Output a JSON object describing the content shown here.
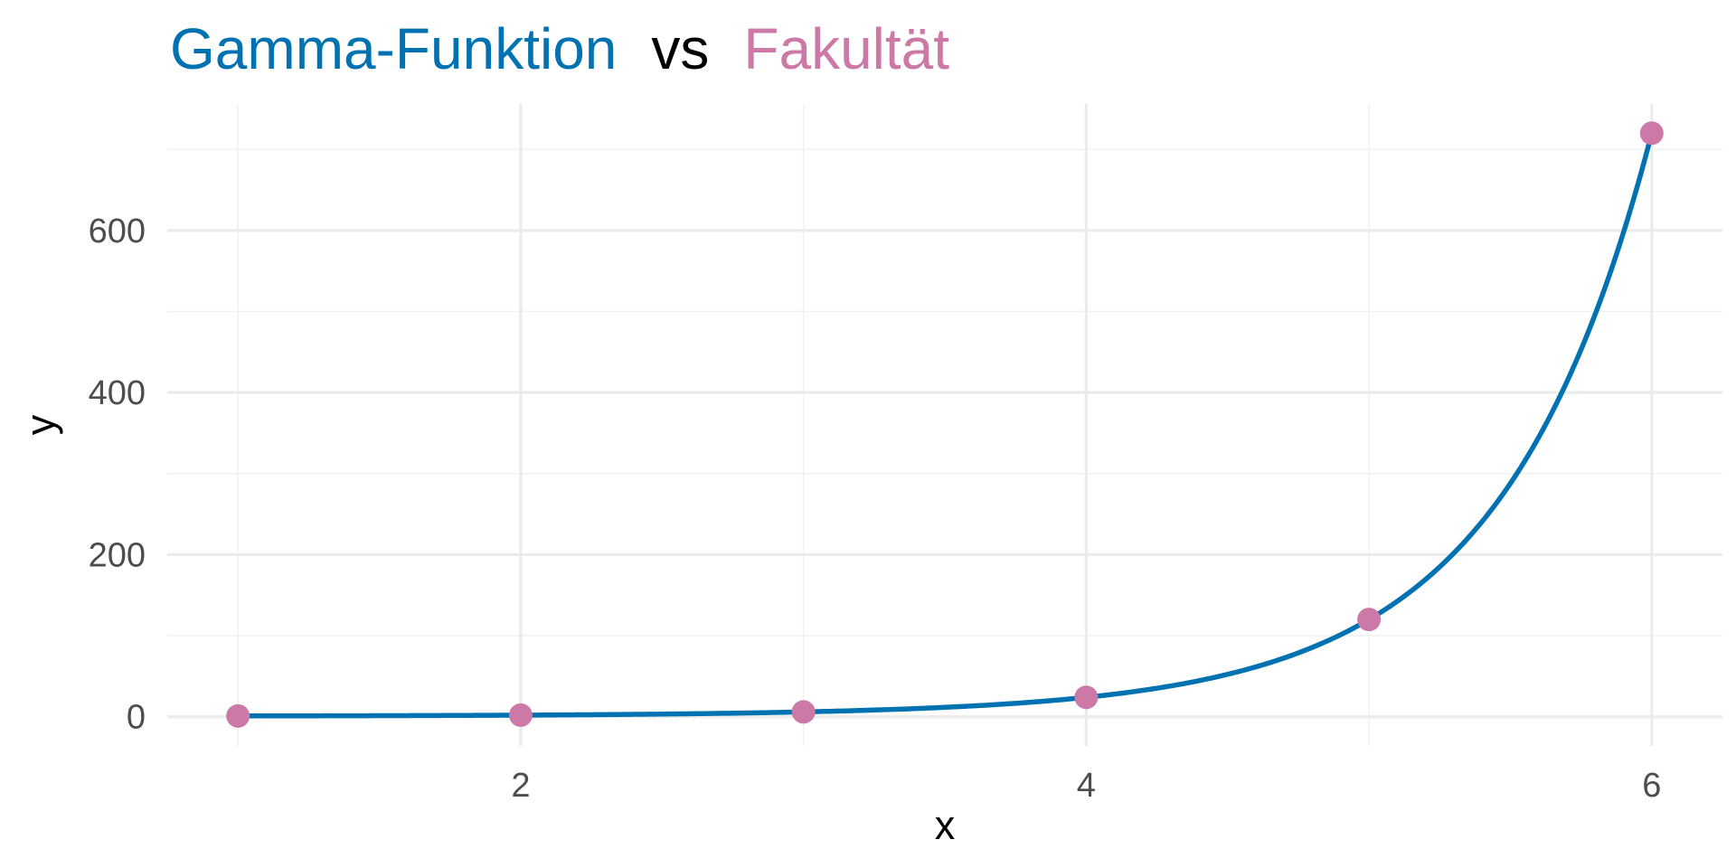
{
  "title": {
    "part1": "Gamma-Funktion",
    "sep": "vs",
    "part2": "Fakultät"
  },
  "colors": {
    "curve": "#0072B2",
    "points": "#CC79A7",
    "sep": "#000000",
    "grid_major": "#ebebeb",
    "grid_minor": "#f2f2f2",
    "tick_text": "#4d4d4d"
  },
  "chart_data": {
    "type": "line",
    "xlabel": "x",
    "ylabel": "y",
    "xlim": [
      0.75,
      6.25
    ],
    "ylim": [
      -36,
      756
    ],
    "x_ticks": [
      2,
      4,
      6
    ],
    "x_tick_labels": [
      "2",
      "4",
      "6"
    ],
    "y_ticks": [
      0,
      200,
      400,
      600
    ],
    "y_tick_labels": [
      "0",
      "200",
      "400",
      "600"
    ],
    "grid": true,
    "legend": "none",
    "series": [
      {
        "kind": "line",
        "function": "gamma(x + 1)",
        "x_range": [
          1,
          6
        ]
      },
      {
        "kind": "points",
        "points": [
          {
            "x": 1,
            "y": 1
          },
          {
            "x": 2,
            "y": 2
          },
          {
            "x": 3,
            "y": 6
          },
          {
            "x": 4,
            "y": 24
          },
          {
            "x": 5,
            "y": 120
          },
          {
            "x": 6,
            "y": 720
          }
        ]
      }
    ]
  }
}
